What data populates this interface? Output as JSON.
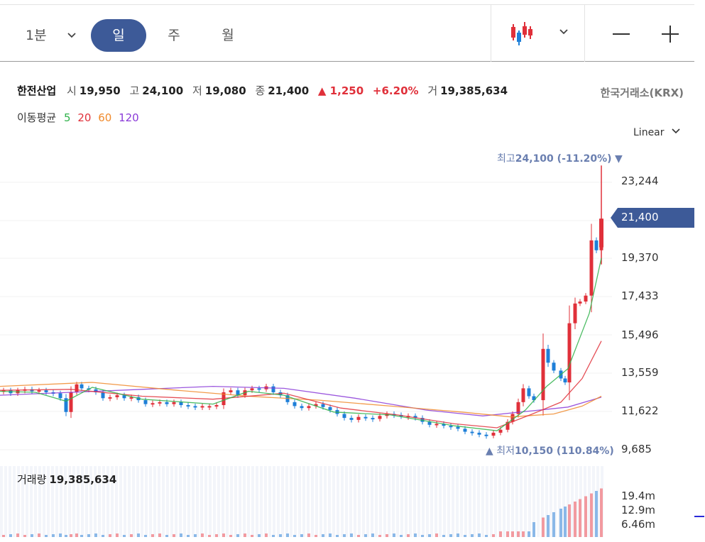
{
  "toolbar": {
    "minute_label": "1분",
    "day_label": "일",
    "week_label": "주",
    "month_label": "월",
    "candle_icon": "candlestick-chart-icon",
    "zoom_out_icon": "minus-icon",
    "zoom_in_icon": "plus-icon"
  },
  "stock": {
    "name": "한전산업",
    "open_label": "시",
    "open": "19,950",
    "high_label": "고",
    "high": "24,100",
    "low_label": "저",
    "low": "19,080",
    "close_label": "종",
    "close": "21,400",
    "change": "▲ 1,250",
    "change_pct": "+6.20%",
    "volume_label": "거",
    "volume": "19,385,634",
    "exchange": "한국거래소(KRX)"
  },
  "ma_legend": {
    "title": "이동평균",
    "periods": [
      "5",
      "20",
      "60",
      "120"
    ],
    "colors": [
      "#2fb24a",
      "#e0303a",
      "#f08a2c",
      "#8a3ad8"
    ]
  },
  "scale": "Linear",
  "price_axis": [
    "23,244",
    "21,400",
    "19,370",
    "17,433",
    "15,496",
    "13,559",
    "11,622",
    "9,685"
  ],
  "current_price": "21,400",
  "high_marker": {
    "label": "최고",
    "value": "24,100 (-11.20%)"
  },
  "low_marker": {
    "label": "최저",
    "value": "10,150 (110.84%)"
  },
  "volume": {
    "title": "거래량",
    "value": "19,385,634",
    "axis": [
      "19.4m",
      "12.9m",
      "6.46m"
    ]
  },
  "colors": {
    "up": "#e0303a",
    "down": "#1e7fd8",
    "accent": "#3d5a98"
  }
}
